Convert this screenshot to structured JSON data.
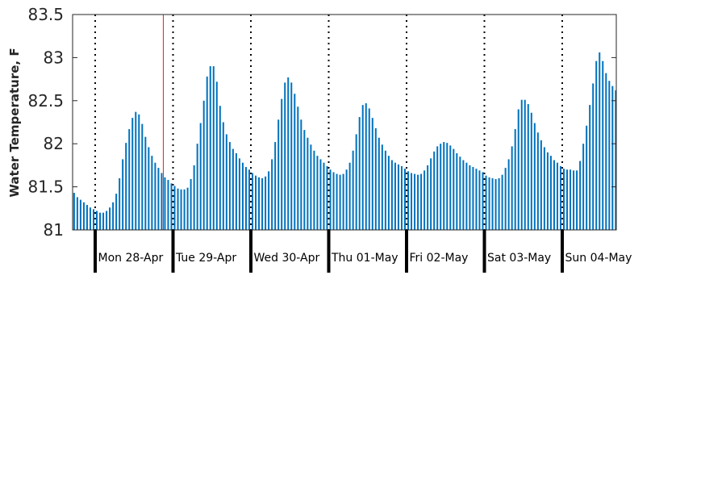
{
  "chart_data": {
    "type": "bar",
    "title": "",
    "xlabel": "",
    "ylabel": "Water Temperature, F",
    "ylim": [
      81,
      83.5
    ],
    "yticks": [
      "81",
      "81.5",
      "82",
      "82.5",
      "83",
      "83.5"
    ],
    "day_labels": [
      "Mon 28-Apr",
      "Tue 29-Apr",
      "Wed 30-Apr",
      "Thu 01-May",
      "Fri 02-May",
      "Sat 03-May",
      "Sun 04-May"
    ],
    "bar_color": "#0072BD",
    "marker_color": "#D62728",
    "marker_hour": 28,
    "grid": false,
    "hours_before_first_day": 7,
    "values": [
      81.43,
      81.38,
      81.35,
      81.32,
      81.29,
      81.26,
      81.24,
      81.22,
      81.2,
      81.2,
      81.22,
      81.26,
      81.32,
      81.42,
      81.6,
      81.82,
      82.01,
      82.17,
      82.3,
      82.37,
      82.34,
      82.23,
      82.08,
      81.96,
      81.86,
      81.78,
      81.72,
      81.66,
      81.61,
      81.58,
      81.54,
      81.51,
      81.48,
      81.47,
      81.47,
      81.49,
      81.59,
      81.75,
      82.0,
      82.24,
      82.5,
      82.78,
      82.9,
      82.9,
      82.72,
      82.44,
      82.25,
      82.11,
      82.02,
      81.94,
      81.89,
      81.83,
      81.78,
      81.73,
      81.7,
      81.66,
      81.63,
      81.61,
      81.6,
      81.62,
      81.68,
      81.82,
      82.02,
      82.28,
      82.52,
      82.71,
      82.77,
      82.71,
      82.58,
      82.43,
      82.28,
      82.16,
      82.07,
      81.99,
      81.92,
      81.86,
      81.82,
      81.78,
      81.74,
      81.7,
      81.67,
      81.65,
      81.64,
      81.65,
      81.7,
      81.78,
      81.92,
      82.11,
      82.31,
      82.45,
      82.47,
      82.41,
      82.3,
      82.18,
      82.07,
      81.99,
      81.92,
      81.86,
      81.81,
      81.78,
      81.76,
      81.74,
      81.71,
      81.68,
      81.66,
      81.65,
      81.64,
      81.65,
      81.69,
      81.75,
      81.83,
      81.91,
      81.97,
      82.0,
      82.02,
      82.01,
      81.98,
      81.94,
      81.89,
      81.85,
      81.81,
      81.78,
      81.75,
      81.73,
      81.71,
      81.69,
      81.67,
      81.63,
      81.61,
      81.6,
      81.59,
      81.6,
      81.64,
      81.72,
      81.82,
      81.97,
      82.17,
      82.4,
      82.51,
      82.51,
      82.46,
      82.36,
      82.24,
      82.13,
      82.04,
      81.96,
      81.9,
      81.86,
      81.81,
      81.78,
      81.74,
      81.71,
      81.7,
      81.7,
      81.69,
      81.69,
      81.8,
      82.0,
      82.21,
      82.45,
      82.7,
      82.96,
      83.06,
      82.96,
      82.82,
      82.73,
      82.67,
      82.62,
      82.54
    ]
  }
}
